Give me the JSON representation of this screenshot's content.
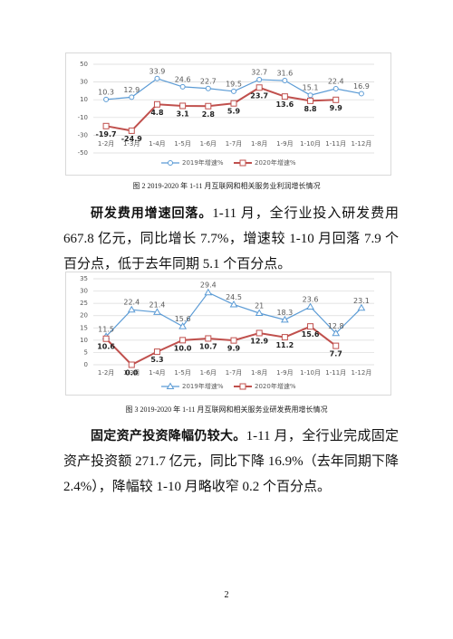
{
  "chart_data": [
    {
      "type": "line",
      "caption": "图 2   2019-2020 年 1-11 月互联网和相关服务业利润增长情况",
      "categories": [
        "1-2月",
        "1-3月",
        "1-4月",
        "1-5月",
        "1-6月",
        "1-7月",
        "1-8月",
        "1-9月",
        "1-10月",
        "1-11月",
        "1-12月"
      ],
      "series": [
        {
          "name": "2019年增速%",
          "color": "#5b9bd5",
          "marker": "circle",
          "values": [
            10.3,
            12.9,
            33.9,
            24.6,
            22.7,
            19.5,
            32.7,
            31.6,
            15.1,
            22.4,
            16.9
          ]
        },
        {
          "name": "2020年增速%",
          "color": "#c0504d",
          "marker": "square",
          "values": [
            -19.7,
            -24.9,
            4.8,
            3.1,
            2.8,
            5.9,
            23.7,
            13.6,
            8.8,
            9.9,
            null
          ]
        }
      ],
      "ylim": [
        -50,
        50
      ],
      "yticks": [
        -50,
        -30,
        -10,
        10,
        30,
        50
      ],
      "grid": true,
      "legend": "bottom"
    },
    {
      "type": "line",
      "caption": "图 3   2019-2020 年 1-11 月互联网和相关服务业研发费用增长情况",
      "categories": [
        "1-2月",
        "1-3月",
        "1-4月",
        "1-5月",
        "1-6月",
        "1-7月",
        "1-8月",
        "1-9月",
        "1-10月",
        "1-11月",
        "1-12月"
      ],
      "series": [
        {
          "name": "2019年增速%",
          "color": "#5b9bd5",
          "marker": "triangle",
          "values": [
            11.5,
            22.4,
            21.4,
            15.6,
            29.4,
            24.5,
            21,
            18.3,
            23.6,
            12.8,
            23.1
          ]
        },
        {
          "name": "2020年增速%",
          "color": "#c0504d",
          "marker": "square",
          "values": [
            10.6,
            0.0,
            5.3,
            10.0,
            10.7,
            9.9,
            12.9,
            11.2,
            15.6,
            7.7,
            null
          ],
          "value_labels": [
            "10.6",
            "0.0",
            "5.3",
            "10.0",
            "10.7",
            "9.9",
            "12.9",
            "11.2",
            "15.6",
            "7.7",
            null
          ]
        }
      ],
      "ylim": [
        0,
        35
      ],
      "yticks": [
        0,
        5,
        10,
        15,
        20,
        25,
        30,
        35
      ],
      "grid": true,
      "legend": "bottom"
    }
  ],
  "document": {
    "paragraphs": [
      {
        "lead": "研发费用增速回落。",
        "text": "1-11 月，全行业投入研发费用 667.8 亿元，同比增长 7.7%，增速较 1-10 月回落 7.9 个百分点，低于去年同期 5.1 个百分点。"
      },
      {
        "lead": "固定资产投资降幅仍较大。",
        "text": "1-11 月，全行业完成固定资产投资额 271.7 亿元，同比下降 16.9%（去年同期下降 2.4%），降幅较 1-10 月略收窄 0.2 个百分点。"
      }
    ],
    "page_number": "2"
  }
}
